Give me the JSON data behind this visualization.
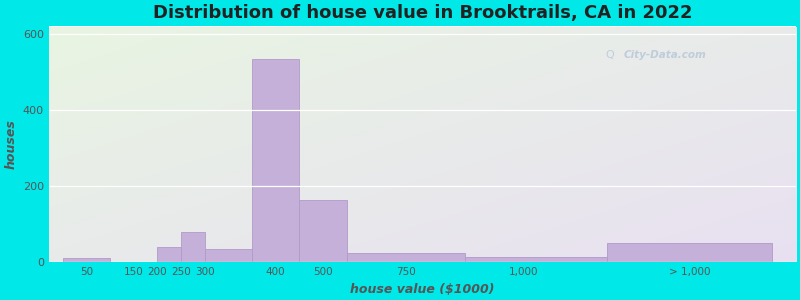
{
  "title": "Distribution of house value in Brooktrails, CA in 2022",
  "xlabel": "house value ($1000)",
  "ylabel": "houses",
  "bar_color": "#c4b0d8",
  "bar_edge_color": "#b09ac8",
  "outer_color": "#00e8e8",
  "ylim": [
    0,
    620
  ],
  "yticks": [
    0,
    200,
    400,
    600
  ],
  "xtick_labels": [
    "50",
    "150",
    "200",
    "250",
    "300",
    "400",
    "500",
    "750",
    "1,000",
    "> 1,000"
  ],
  "bar_heights": [
    12,
    2,
    40,
    80,
    35,
    535,
    165,
    25,
    15,
    50
  ],
  "bar_left_edges": [
    0,
    1,
    2,
    2.5,
    3,
    4,
    5,
    6,
    8.5,
    11.5
  ],
  "bar_right_edges": [
    1,
    2,
    2.5,
    3,
    4,
    5,
    6,
    8.5,
    11.5,
    15
  ],
  "xtick_positions": [
    0.5,
    1.5,
    2.0,
    2.5,
    3.0,
    4.5,
    5.5,
    7.25,
    9.75,
    13.25
  ],
  "xlim": [
    -0.3,
    15.5
  ],
  "watermark": "City-Data.com",
  "title_fontsize": 13,
  "axis_label_fontsize": 9
}
